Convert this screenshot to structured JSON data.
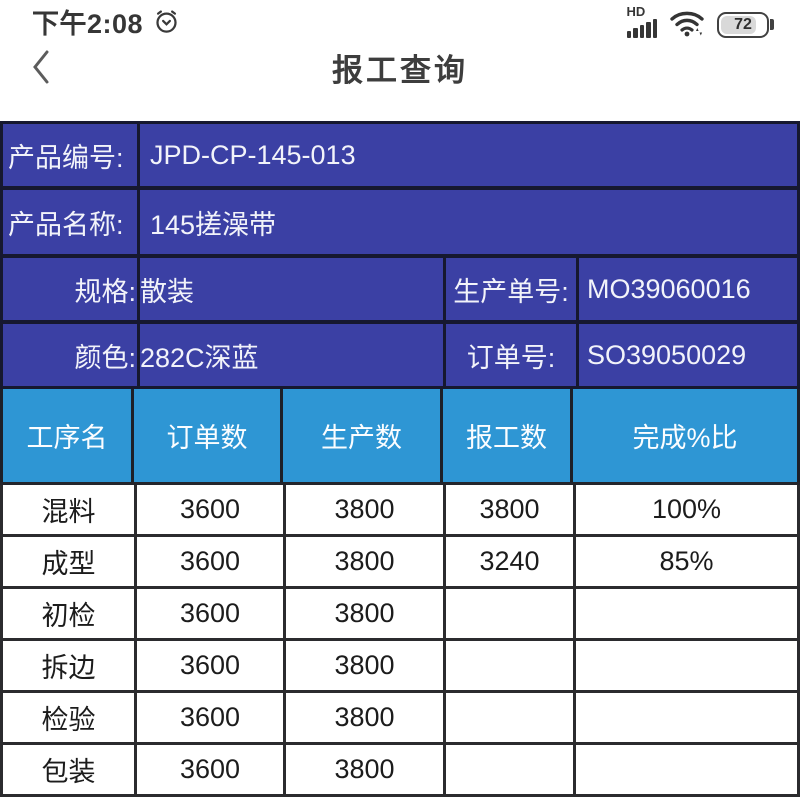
{
  "status_bar": {
    "time": "下午2:08",
    "hd_label": "HD",
    "battery_percent": "72",
    "battery_level": 0.72
  },
  "nav": {
    "title": "报工查询"
  },
  "product_info": {
    "rows_simple": [
      {
        "label": "产品编号:",
        "value": "JPD-CP-145-013"
      },
      {
        "label": "产品名称:",
        "value": "145搓澡带"
      }
    ],
    "rows_double": [
      {
        "label": "规格:",
        "value": "散装",
        "label2": "生产单号:",
        "value2": "MO39060016"
      },
      {
        "label": "颜色:",
        "value": "282C深蓝",
        "label2": "订单号:",
        "value2": "SO39050029"
      }
    ]
  },
  "process_table": {
    "headers": [
      "工序名",
      "订单数",
      "生产数",
      "报工数",
      "完成%比"
    ],
    "rows": [
      [
        "混料",
        "3600",
        "3800",
        "3800",
        "100%"
      ],
      [
        "成型",
        "3600",
        "3800",
        "3240",
        "85%"
      ],
      [
        "初检",
        "3600",
        "3800",
        "",
        ""
      ],
      [
        "拆边",
        "3600",
        "3800",
        "",
        ""
      ],
      [
        "检验",
        "3600",
        "3800",
        "",
        ""
      ],
      [
        "包装",
        "3600",
        "3800",
        "",
        ""
      ]
    ]
  },
  "colors": {
    "dark_blue": "#3b40a4",
    "light_blue": "#2e96d4",
    "dark_border": "#16182f"
  }
}
